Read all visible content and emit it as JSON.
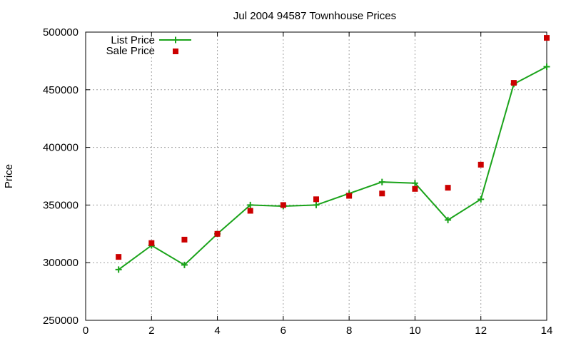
{
  "chart_data": {
    "type": "line",
    "title": "Jul 2004 94587 Townhouse Prices",
    "xlabel": "",
    "ylabel": "Price",
    "xlim": [
      0,
      14
    ],
    "ylim": [
      250000,
      500000
    ],
    "xticks": [
      0,
      2,
      4,
      6,
      8,
      10,
      12,
      14
    ],
    "yticks": [
      250000,
      300000,
      350000,
      400000,
      450000,
      500000
    ],
    "grid": true,
    "legend_position": "top-left",
    "series": [
      {
        "name": "List Price",
        "style": "line+cross",
        "color": "#1aa31a",
        "x": [
          1,
          2,
          3,
          4,
          5,
          6,
          7,
          8,
          9,
          10,
          11,
          12,
          13,
          14
        ],
        "y": [
          294000,
          315000,
          298000,
          325000,
          350000,
          349000,
          350000,
          360000,
          370000,
          369000,
          337000,
          355000,
          455000,
          470000
        ]
      },
      {
        "name": "Sale Price",
        "style": "square",
        "color": "#cc0000",
        "x": [
          1,
          2,
          3,
          4,
          5,
          6,
          7,
          8,
          9,
          10,
          11,
          12,
          13,
          14
        ],
        "y": [
          305000,
          317000,
          320000,
          325000,
          345000,
          350000,
          355000,
          358000,
          360000,
          364000,
          365000,
          385000,
          456000,
          495000
        ]
      }
    ]
  }
}
